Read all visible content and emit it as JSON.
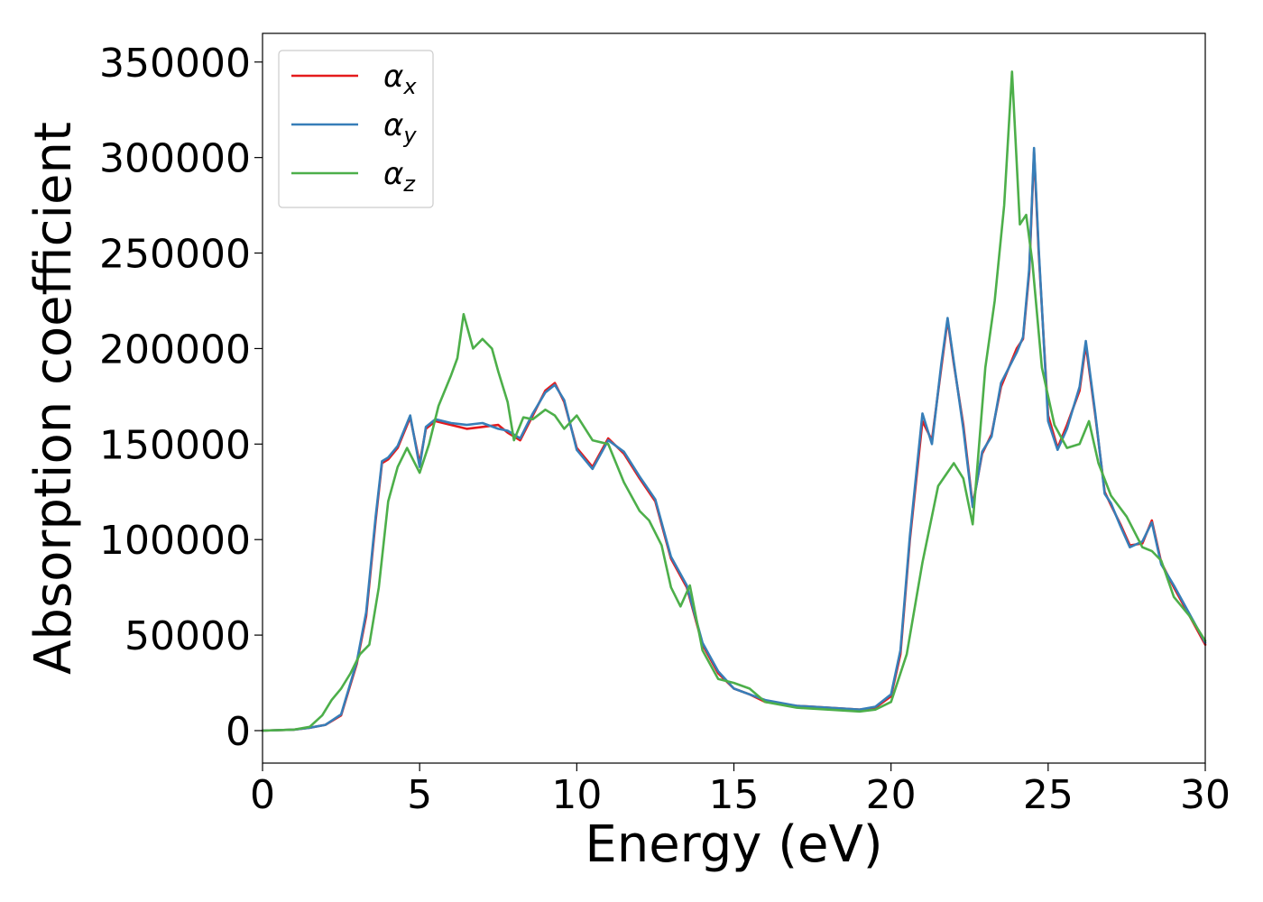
{
  "chart_data": {
    "type": "line",
    "title": "",
    "xlabel": "Energy (eV)",
    "ylabel": "Absorption coefficient",
    "xlim": [
      0,
      30
    ],
    "ylim": [
      -17000,
      365000
    ],
    "xticks": [
      0,
      5,
      10,
      15,
      20,
      25,
      30
    ],
    "yticks": [
      0,
      50000,
      100000,
      150000,
      200000,
      250000,
      300000,
      350000
    ],
    "grid": false,
    "legend_position": "top-left",
    "series": [
      {
        "name": "α_x",
        "label_main": "α",
        "label_sub": "x",
        "color": "#e41a1c",
        "x": [
          0,
          1,
          1.5,
          2,
          2.5,
          3,
          3.3,
          3.6,
          3.8,
          4.0,
          4.3,
          4.7,
          5.0,
          5.2,
          5.5,
          6.0,
          6.5,
          7.0,
          7.5,
          7.8,
          8.2,
          8.6,
          9.0,
          9.3,
          9.6,
          10.0,
          10.5,
          11.0,
          11.5,
          12.0,
          12.5,
          13.0,
          13.5,
          14.0,
          14.5,
          15.0,
          15.5,
          16.0,
          17.0,
          18.0,
          19.0,
          19.5,
          20.0,
          20.3,
          20.6,
          21.0,
          21.3,
          21.6,
          21.8,
          22.0,
          22.3,
          22.6,
          22.9,
          23.2,
          23.5,
          24.0,
          24.2,
          24.4,
          24.55,
          24.7,
          25.0,
          25.3,
          25.6,
          26.0,
          26.2,
          26.5,
          26.8,
          27.0,
          27.3,
          27.6,
          28.0,
          28.3,
          28.6,
          29.0,
          29.5,
          30.0
        ],
        "y": [
          0,
          500,
          1500,
          3000,
          8000,
          35000,
          60000,
          110000,
          140000,
          142000,
          148000,
          164000,
          140000,
          158000,
          162000,
          160000,
          158000,
          159000,
          160000,
          156000,
          152000,
          165000,
          178000,
          182000,
          172000,
          148000,
          138000,
          153000,
          145000,
          132000,
          120000,
          90000,
          75000,
          45000,
          30000,
          22000,
          19000,
          15000,
          13000,
          12000,
          11000,
          12000,
          18000,
          40000,
          100000,
          162000,
          152000,
          190000,
          215000,
          192000,
          160000,
          118000,
          145000,
          155000,
          180000,
          200000,
          205000,
          240000,
          303000,
          250000,
          165000,
          148000,
          160000,
          178000,
          202000,
          165000,
          125000,
          118000,
          108000,
          97000,
          98000,
          110000,
          88000,
          75000,
          60000,
          45000
        ]
      },
      {
        "name": "α_y",
        "label_main": "α",
        "label_sub": "y",
        "color": "#377eb8",
        "x": [
          0,
          1,
          1.5,
          2,
          2.5,
          3,
          3.3,
          3.6,
          3.8,
          4.0,
          4.3,
          4.7,
          5.0,
          5.2,
          5.5,
          6.0,
          6.5,
          7.0,
          7.5,
          7.8,
          8.2,
          8.6,
          9.0,
          9.3,
          9.6,
          10.0,
          10.5,
          11.0,
          11.5,
          12.0,
          12.5,
          13.0,
          13.5,
          14.0,
          14.5,
          15.0,
          15.5,
          16.0,
          17.0,
          18.0,
          19.0,
          19.5,
          20.0,
          20.3,
          20.6,
          21.0,
          21.3,
          21.6,
          21.8,
          22.0,
          22.3,
          22.6,
          22.9,
          23.2,
          23.5,
          24.0,
          24.2,
          24.4,
          24.55,
          24.7,
          25.0,
          25.3,
          25.6,
          26.0,
          26.2,
          26.5,
          26.8,
          27.0,
          27.3,
          27.6,
          28.0,
          28.3,
          28.6,
          29.0,
          29.5,
          30.0
        ],
        "y": [
          0,
          500,
          1500,
          3000,
          8500,
          36000,
          62000,
          112000,
          141000,
          143000,
          149000,
          165000,
          138000,
          159000,
          163000,
          161000,
          160000,
          161000,
          158000,
          157000,
          153000,
          166000,
          177000,
          181000,
          173000,
          147000,
          137000,
          152000,
          146000,
          133000,
          121000,
          91000,
          76000,
          46000,
          31000,
          22000,
          19000,
          16000,
          13000,
          12000,
          11000,
          12500,
          19000,
          42000,
          102000,
          166000,
          150000,
          192000,
          216000,
          193000,
          158000,
          117000,
          146000,
          154000,
          182000,
          198000,
          206000,
          242000,
          305000,
          252000,
          162000,
          147000,
          158000,
          180000,
          204000,
          166000,
          124000,
          119000,
          107000,
          96000,
          99000,
          109000,
          87000,
          76000,
          61000,
          46000
        ]
      },
      {
        "name": "α_z",
        "label_main": "α",
        "label_sub": "z",
        "color": "#4daf4a",
        "x": [
          0,
          1,
          1.5,
          1.9,
          2.2,
          2.5,
          2.8,
          3.1,
          3.4,
          3.7,
          4.0,
          4.3,
          4.6,
          5.0,
          5.3,
          5.6,
          6.0,
          6.2,
          6.4,
          6.7,
          7.0,
          7.3,
          7.5,
          7.8,
          8.0,
          8.3,
          8.6,
          9.0,
          9.3,
          9.6,
          10.0,
          10.5,
          11.0,
          11.5,
          12.0,
          12.3,
          12.7,
          13.0,
          13.3,
          13.6,
          14.0,
          14.5,
          15.0,
          15.5,
          16.0,
          17.0,
          18.0,
          19.0,
          19.5,
          20.0,
          20.5,
          21.0,
          21.5,
          22.0,
          22.3,
          22.6,
          23.0,
          23.3,
          23.6,
          23.85,
          24.1,
          24.3,
          24.5,
          24.8,
          25.2,
          25.6,
          26.0,
          26.3,
          26.6,
          27.0,
          27.5,
          28.0,
          28.3,
          28.6,
          29.0,
          29.5,
          30.0
        ],
        "y": [
          0,
          500,
          2000,
          8000,
          16000,
          22000,
          30000,
          40000,
          45000,
          75000,
          120000,
          138000,
          148000,
          135000,
          150000,
          170000,
          186000,
          195000,
          218000,
          200000,
          205000,
          200000,
          188000,
          172000,
          152000,
          164000,
          163000,
          168000,
          165000,
          158000,
          165000,
          152000,
          150000,
          130000,
          115000,
          110000,
          97000,
          75000,
          65000,
          76000,
          42000,
          27000,
          25000,
          22000,
          15000,
          12000,
          11000,
          10000,
          11000,
          15000,
          40000,
          88000,
          128000,
          140000,
          132000,
          108000,
          190000,
          225000,
          275000,
          345000,
          265000,
          270000,
          245000,
          190000,
          160000,
          148000,
          150000,
          162000,
          140000,
          123000,
          112000,
          96000,
          94000,
          89000,
          70000,
          60000,
          47000
        ]
      }
    ]
  }
}
